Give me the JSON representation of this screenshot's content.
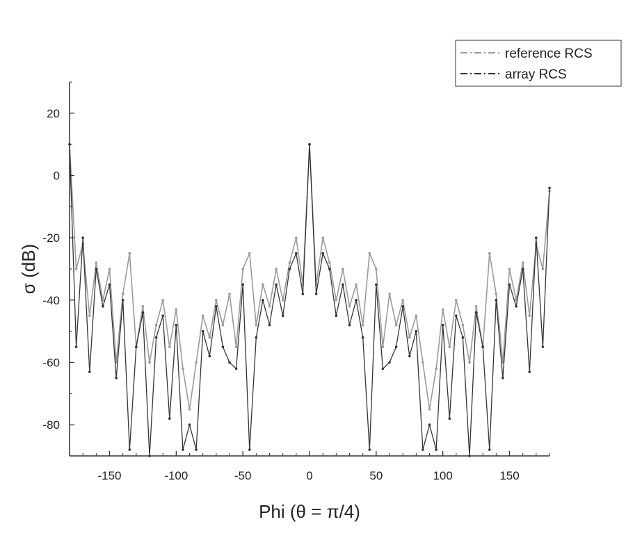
{
  "chart_data": {
    "type": "line",
    "title": "",
    "xlabel": "Phi (θ = π/4)",
    "ylabel": "σ (dB)",
    "xlim": [
      -180,
      180
    ],
    "ylim": [
      -90,
      30
    ],
    "xticks": [
      -150,
      -100,
      -50,
      0,
      50,
      100,
      150
    ],
    "yticks": [
      -80,
      -60,
      -40,
      -20,
      0,
      20
    ],
    "grid": false,
    "legend_position": "top-right",
    "x": [
      -180,
      -175,
      -170,
      -165,
      -160,
      -155,
      -150,
      -145,
      -140,
      -135,
      -130,
      -125,
      -120,
      -115,
      -110,
      -105,
      -100,
      -95,
      -90,
      -85,
      -80,
      -75,
      -70,
      -65,
      -60,
      -55,
      -50,
      -45,
      -40,
      -35,
      -30,
      -25,
      -20,
      -15,
      -10,
      -5,
      0,
      5,
      10,
      15,
      20,
      25,
      30,
      35,
      40,
      45,
      50,
      55,
      60,
      65,
      70,
      75,
      80,
      85,
      90,
      95,
      100,
      105,
      110,
      115,
      120,
      125,
      130,
      135,
      140,
      145,
      150,
      155,
      160,
      165,
      170,
      175,
      180
    ],
    "series": [
      {
        "name": "reference RCS",
        "color": "#9a9a9a",
        "values": [
          10,
          -30,
          -22,
          -45,
          -28,
          -40,
          -30,
          -60,
          -38,
          -25,
          -55,
          -42,
          -60,
          -48,
          -40,
          -55,
          -43,
          -62,
          -75,
          -60,
          -45,
          -52,
          -40,
          -48,
          -38,
          -55,
          -30,
          -25,
          -48,
          -35,
          -42,
          -30,
          -40,
          -28,
          -20,
          -35,
          10,
          -35,
          -20,
          -28,
          -40,
          -30,
          -42,
          -35,
          -48,
          -25,
          -30,
          -55,
          -38,
          -48,
          -40,
          -52,
          -45,
          -60,
          -75,
          -62,
          -43,
          -55,
          -40,
          -48,
          -60,
          -42,
          -55,
          -25,
          -38,
          -60,
          -30,
          -40,
          -28,
          -45,
          -22,
          -30,
          -5
        ]
      },
      {
        "name": "array RCS",
        "color": "#333333",
        "values": [
          10,
          -55,
          -20,
          -63,
          -30,
          -42,
          -35,
          -65,
          -40,
          -88,
          -55,
          -44,
          -90,
          -52,
          -45,
          -78,
          -48,
          -88,
          -80,
          -88,
          -50,
          -58,
          -42,
          -55,
          -60,
          -62,
          -35,
          -88,
          -52,
          -40,
          -48,
          -35,
          -45,
          -30,
          -25,
          -38,
          10,
          -38,
          -25,
          -30,
          -45,
          -35,
          -48,
          -40,
          -52,
          -88,
          -35,
          -62,
          -60,
          -55,
          -42,
          -58,
          -50,
          -88,
          -80,
          -88,
          -48,
          -78,
          -45,
          -52,
          -90,
          -44,
          -55,
          -88,
          -40,
          -65,
          -35,
          -42,
          -30,
          -63,
          -20,
          -55,
          -4
        ]
      }
    ]
  }
}
